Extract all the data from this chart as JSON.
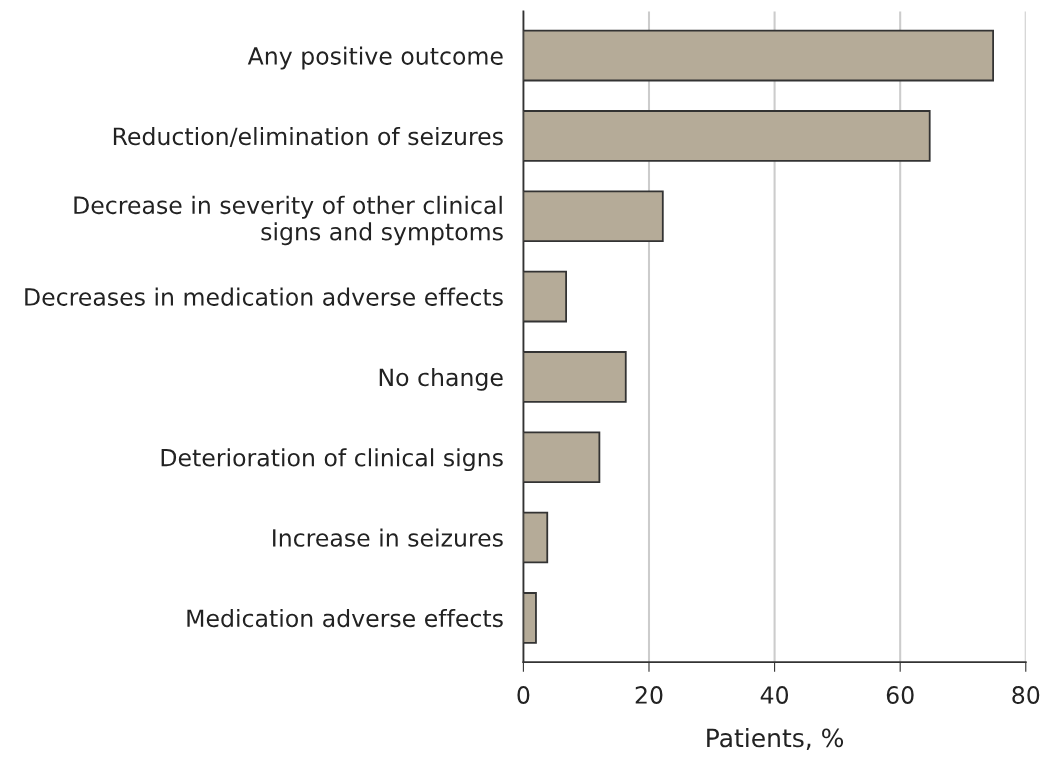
{
  "chart_data": {
    "type": "bar",
    "orientation": "horizontal",
    "categories": [
      "Any positive outcome",
      "Reduction/elimination of seizures",
      "Decrease in severity of other clinical\nsigns and symptoms",
      "Decreases in medication adverse effects",
      "No change",
      "Deterioration of clinical signs",
      "Increase in seizures",
      "Medication adverse effects"
    ],
    "values": [
      74.8,
      64.7,
      22.2,
      6.8,
      16.3,
      12.1,
      3.8,
      2.0
    ],
    "color": "#b5ab98",
    "xlabel": "Patients, %",
    "xlim": [
      0,
      80
    ],
    "xticks": [
      0,
      20,
      40,
      60,
      80
    ],
    "grid": "x"
  }
}
